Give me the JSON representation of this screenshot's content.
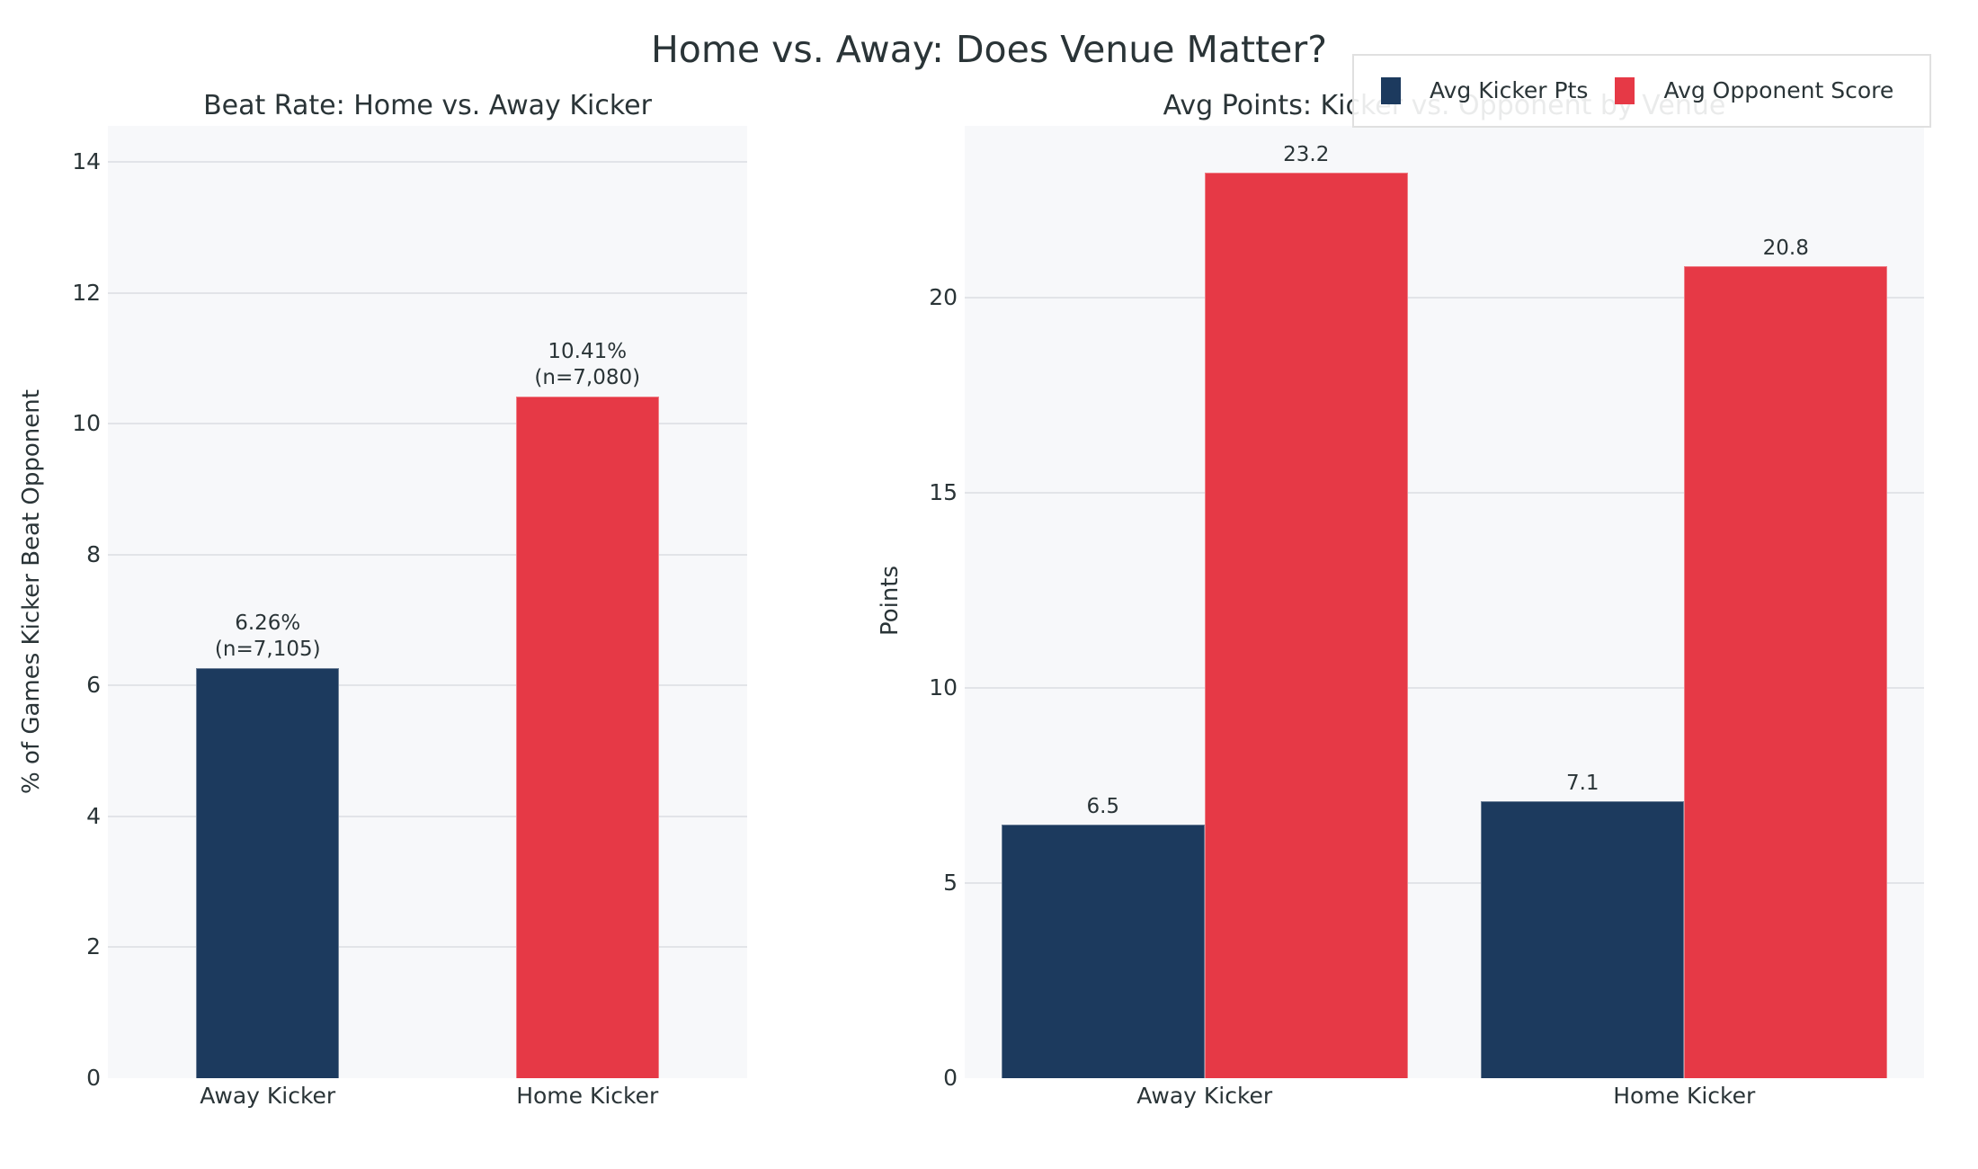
{
  "title": "Home vs. Away: Does Venue Matter?",
  "colors": {
    "away": "#1c3a5e",
    "home": "#e63946",
    "kicker": "#1c3a5e",
    "opponent": "#e63946",
    "plot_bg": "#f7f8fa",
    "grid": "#e2e4e8",
    "text": "#2a3437"
  },
  "legend": {
    "items": [
      {
        "label": "Avg Kicker Pts",
        "color": "#1c3a5e"
      },
      {
        "label": "Avg Opponent Score",
        "color": "#e63946"
      }
    ]
  },
  "chart_data": [
    {
      "type": "bar",
      "title": "Beat Rate: Home vs. Away Kicker",
      "xlabel": "",
      "ylabel": "% of Games Kicker Beat Opponent",
      "categories": [
        "Away Kicker",
        "Home Kicker"
      ],
      "values": [
        6.26,
        10.41
      ],
      "bar_labels": [
        "6.26%\n(n=7,105)",
        "10.41%\n(n=7,080)"
      ],
      "bar_colors": [
        "#1c3a5e",
        "#e63946"
      ],
      "sample_sizes": [
        7105,
        7080
      ],
      "ylim": [
        0,
        14.55
      ],
      "yticks": [
        0,
        2,
        4,
        6,
        8,
        10,
        12,
        14
      ],
      "grid": true,
      "legend": false
    },
    {
      "type": "bar",
      "title": "Avg Points: Kicker vs. Opponent by Venue",
      "xlabel": "",
      "ylabel": "Points",
      "categories": [
        "Away Kicker",
        "Home Kicker"
      ],
      "series": [
        {
          "name": "Avg Kicker Pts",
          "values": [
            6.5,
            7.1
          ],
          "color": "#1c3a5e"
        },
        {
          "name": "Avg Opponent Score",
          "values": [
            23.2,
            20.8
          ],
          "color": "#e63946"
        }
      ],
      "ylim": [
        0,
        24.4
      ],
      "yticks": [
        0,
        5,
        10,
        15,
        20
      ],
      "grid": true,
      "legend": true,
      "legend_position": "top-right"
    }
  ]
}
